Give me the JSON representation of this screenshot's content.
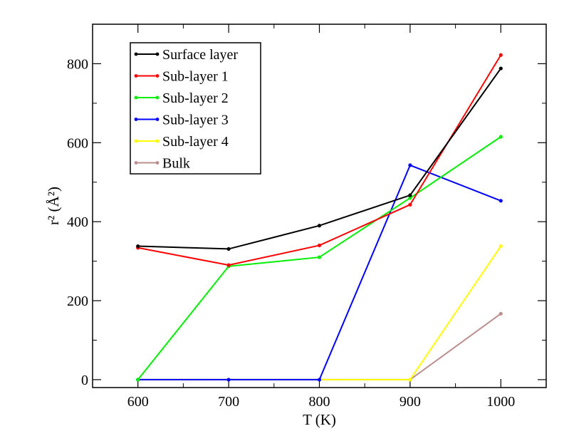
{
  "chart_data": {
    "type": "line",
    "xlabel": "T (K)",
    "ylabel": "r² (Å²)",
    "xlim": [
      550,
      1050
    ],
    "ylim": [
      -20,
      900
    ],
    "x_ticks": [
      600,
      700,
      800,
      900,
      1000
    ],
    "y_ticks": [
      0,
      200,
      400,
      600,
      800
    ],
    "x": [
      600,
      700,
      800,
      900,
      1000
    ],
    "legend_position": "top-left",
    "grid": false,
    "series": [
      {
        "name": "Surface layer",
        "color": "#000000",
        "values": [
          338,
          331,
          390,
          467,
          788
        ]
      },
      {
        "name": "Sub-layer 1",
        "color": "#ff0000",
        "values": [
          334,
          290,
          340,
          443,
          822
        ]
      },
      {
        "name": "Sub-layer 2",
        "color": "#00ee00",
        "values": [
          0,
          287,
          310,
          460,
          615
        ]
      },
      {
        "name": "Sub-layer 3",
        "color": "#0000ff",
        "values": [
          0,
          0,
          0,
          543,
          453
        ]
      },
      {
        "name": "Sub-layer 4",
        "color": "#ffff00",
        "values": [
          0,
          0,
          0,
          0,
          338
        ]
      },
      {
        "name": "Bulk",
        "color": "#bc8f8f",
        "values": [
          0,
          0,
          0,
          0,
          167
        ]
      }
    ]
  }
}
